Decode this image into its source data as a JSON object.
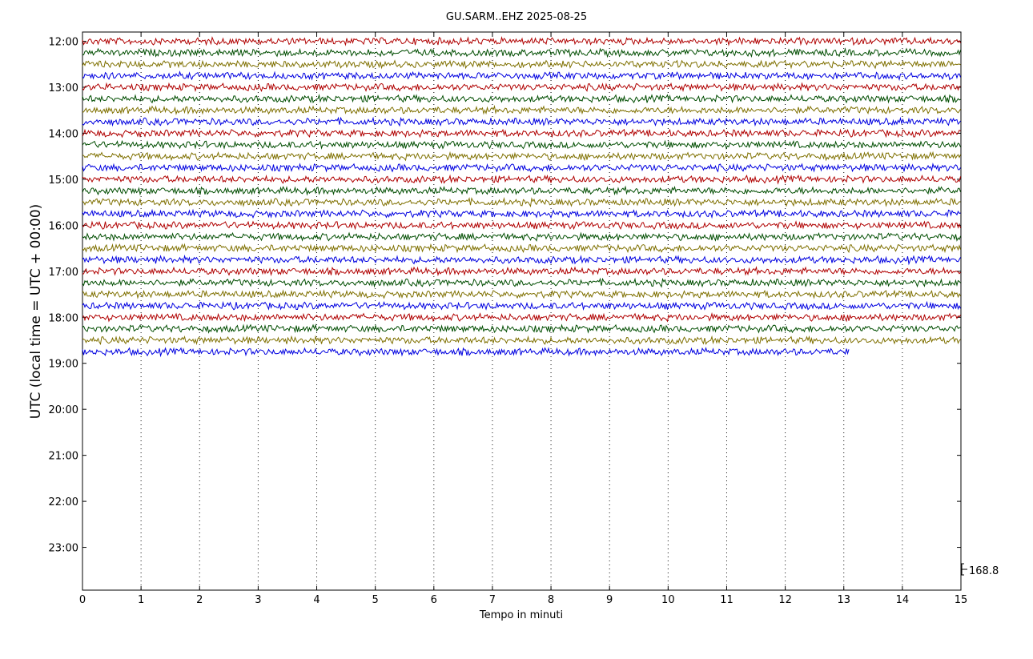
{
  "chart_data": {
    "type": "helicorder",
    "title": "GU.SARM..EHZ 2025-08-25",
    "xlabel": "Tempo in minuti",
    "ylabel": "UTC (local time = UTC + 00:00)",
    "xlim": [
      0,
      15
    ],
    "xticks": [
      0,
      1,
      2,
      3,
      4,
      5,
      6,
      7,
      8,
      9,
      10,
      11,
      12,
      13,
      14,
      15
    ],
    "ylim": [
      23.93,
      11.8
    ],
    "yticks": [
      {
        "value": 12,
        "label": "12:00"
      },
      {
        "value": 13,
        "label": "13:00"
      },
      {
        "value": 14,
        "label": "14:00"
      },
      {
        "value": 15,
        "label": "15:00"
      },
      {
        "value": 16,
        "label": "16:00"
      },
      {
        "value": 17,
        "label": "17:00"
      },
      {
        "value": 18,
        "label": "18:00"
      },
      {
        "value": 19,
        "label": "19:00"
      },
      {
        "value": 20,
        "label": "20:00"
      },
      {
        "value": 21,
        "label": "21:00"
      },
      {
        "value": 22,
        "label": "22:00"
      },
      {
        "value": 23,
        "label": "23:00"
      }
    ],
    "grid": true,
    "scale_label": 168.8,
    "traces": [
      {
        "offset": 12.0,
        "color": "#b00000",
        "xend": 15
      },
      {
        "offset": 12.25,
        "color": "#004d00",
        "xend": 15
      },
      {
        "offset": 12.5,
        "color": "#7f7000",
        "xend": 15
      },
      {
        "offset": 12.75,
        "color": "#0000e0",
        "xend": 15
      },
      {
        "offset": 13.0,
        "color": "#b00000",
        "xend": 15
      },
      {
        "offset": 13.25,
        "color": "#004d00",
        "xend": 15
      },
      {
        "offset": 13.5,
        "color": "#7f7000",
        "xend": 15
      },
      {
        "offset": 13.75,
        "color": "#0000e0",
        "xend": 15
      },
      {
        "offset": 14.0,
        "color": "#b00000",
        "xend": 15
      },
      {
        "offset": 14.25,
        "color": "#004d00",
        "xend": 15
      },
      {
        "offset": 14.5,
        "color": "#7f7000",
        "xend": 15
      },
      {
        "offset": 14.75,
        "color": "#0000e0",
        "xend": 15
      },
      {
        "offset": 15.0,
        "color": "#b00000",
        "xend": 15
      },
      {
        "offset": 15.25,
        "color": "#004d00",
        "xend": 15
      },
      {
        "offset": 15.5,
        "color": "#7f7000",
        "xend": 15
      },
      {
        "offset": 15.75,
        "color": "#0000e0",
        "xend": 15
      },
      {
        "offset": 16.0,
        "color": "#b00000",
        "xend": 15
      },
      {
        "offset": 16.25,
        "color": "#004d00",
        "xend": 15
      },
      {
        "offset": 16.5,
        "color": "#7f7000",
        "xend": 15
      },
      {
        "offset": 16.75,
        "color": "#0000e0",
        "xend": 15
      },
      {
        "offset": 17.0,
        "color": "#b00000",
        "xend": 15
      },
      {
        "offset": 17.25,
        "color": "#004d00",
        "xend": 15
      },
      {
        "offset": 17.5,
        "color": "#7f7000",
        "xend": 15
      },
      {
        "offset": 17.75,
        "color": "#0000e0",
        "xend": 15
      },
      {
        "offset": 18.0,
        "color": "#b00000",
        "xend": 15
      },
      {
        "offset": 18.25,
        "color": "#004d00",
        "xend": 15
      },
      {
        "offset": 18.5,
        "color": "#7f7000",
        "xend": 15
      },
      {
        "offset": 18.75,
        "color": "#0000e0",
        "xend": 13.1
      }
    ]
  }
}
